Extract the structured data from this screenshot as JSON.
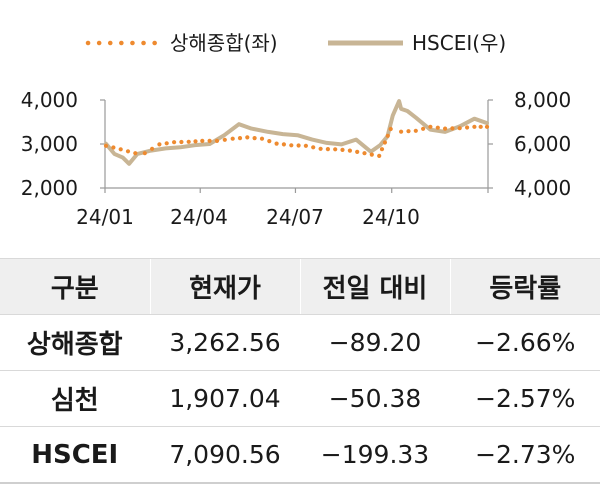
{
  "chart_data": {
    "type": "line",
    "legend": {
      "position": "top",
      "items": [
        {
          "name": "상해종합(좌)",
          "style": "dotted",
          "color": "#ee8a2f"
        },
        {
          "name": "HSCEI(우)",
          "style": "solid",
          "color": "#c8b595"
        }
      ]
    },
    "x_ticks": [
      "24/01",
      "24/04",
      "24/07",
      "24/10"
    ],
    "y_left": {
      "ticks": [
        "2,000",
        "3,000",
        "4,000"
      ],
      "range": [
        2000,
        4000
      ]
    },
    "y_right": {
      "ticks": [
        "4,000",
        "6,000",
        "8,000"
      ],
      "range": [
        4000,
        8000
      ]
    },
    "grid": false,
    "series": [
      {
        "name": "상해종합(좌)",
        "axis": "left",
        "x": [
          "24/01/02",
          "24/01/16",
          "24/01/30",
          "24/02/08",
          "24/02/22",
          "24/03/07",
          "24/03/21",
          "24/04/03",
          "24/04/17",
          "24/05/02",
          "24/05/16",
          "24/05/30",
          "24/06/13",
          "24/06/27",
          "24/07/11",
          "24/07/25",
          "24/08/08",
          "24/08/22",
          "24/09/05",
          "24/09/19",
          "24/09/30",
          "24/10/10",
          "24/10/24",
          "24/11/07",
          "24/11/21",
          "24/12/05",
          "24/12/19",
          "24/12/31"
        ],
        "values": [
          2960,
          2880,
          2790,
          2790,
          2990,
          3040,
          3050,
          3070,
          3070,
          3120,
          3150,
          3120,
          3010,
          2970,
          2960,
          2890,
          2880,
          2850,
          2790,
          2730,
          3340,
          3280,
          3300,
          3390,
          3350,
          3360,
          3390,
          3390
        ]
      },
      {
        "name": "HSCEI(우)",
        "axis": "right",
        "x": [
          "24/01/02",
          "24/01/10",
          "24/01/18",
          "24/01/24",
          "24/02/01",
          "24/02/14",
          "24/02/28",
          "24/03/13",
          "24/03/27",
          "24/04/10",
          "24/04/24",
          "24/05/08",
          "24/05/20",
          "24/06/05",
          "24/06/19",
          "24/07/03",
          "24/07/17",
          "24/07/31",
          "24/08/14",
          "24/08/28",
          "24/09/11",
          "24/09/20",
          "24/09/27",
          "24/10/02",
          "24/10/08",
          "24/10/10",
          "24/10/16",
          "24/10/24",
          "24/11/07",
          "24/11/21",
          "24/12/05",
          "24/12/19",
          "24/12/31"
        ],
        "values": [
          6010,
          5550,
          5380,
          5100,
          5550,
          5700,
          5800,
          5850,
          5950,
          6000,
          6400,
          6900,
          6700,
          6550,
          6450,
          6400,
          6200,
          6050,
          5980,
          6200,
          5650,
          5950,
          6350,
          7300,
          7950,
          7600,
          7500,
          7200,
          6650,
          6550,
          6800,
          7150,
          6950
        ]
      }
    ]
  },
  "table": {
    "headers": [
      "구분",
      "현재가",
      "전일 대비",
      "등락률"
    ],
    "rows": [
      {
        "name": "상해종합",
        "price": "3,262.56",
        "change": "−89.20",
        "rate": "−2.66%"
      },
      {
        "name": "심천",
        "price": "1,907.04",
        "change": "−50.38",
        "rate": "−2.57%"
      },
      {
        "name": "HSCEI",
        "price": "7,090.56",
        "change": "−199.33",
        "rate": "−2.73%"
      }
    ]
  }
}
